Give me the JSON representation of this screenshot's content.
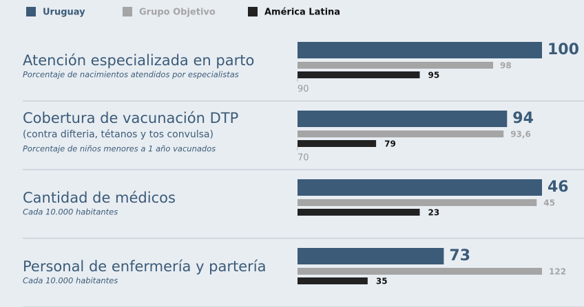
{
  "chart_data": {
    "type": "bar",
    "orientation": "horizontal",
    "series": [
      {
        "name": "Uruguay",
        "color": "#3b5b78",
        "values": [
          100,
          94,
          46,
          73
        ]
      },
      {
        "name": "Grupo Objetivo",
        "color": "#a5a5a5",
        "values": [
          98,
          93.6,
          45,
          122
        ],
        "value_labels": [
          "98",
          "93,6",
          "45",
          "122"
        ]
      },
      {
        "name": "América Latina",
        "color": "#222222",
        "values": [
          95,
          79,
          23,
          35
        ]
      }
    ],
    "panels": [
      {
        "title": "Atención especializada en parto",
        "note": "Porcentaje de nacimientos atendidos por especialistas",
        "xlim": [
          90,
          100
        ],
        "xticks": [
          90
        ]
      },
      {
        "title": "Cobertura de vacunación DTP",
        "description": "(contra difteria, tétanos y tos convulsa)",
        "note": "Porcentaje de niños menores a 1 año vacunados",
        "xlim": [
          70,
          98
        ],
        "xticks": [
          70
        ]
      },
      {
        "title": "Cantidad de médicos",
        "note": "Cada 10.000 habitantes",
        "xlim": [
          0,
          46
        ]
      },
      {
        "title": "Personal de enfermería y partería",
        "note": "Cada 10.000 habitantes",
        "xlim": [
          0,
          122
        ]
      }
    ]
  }
}
